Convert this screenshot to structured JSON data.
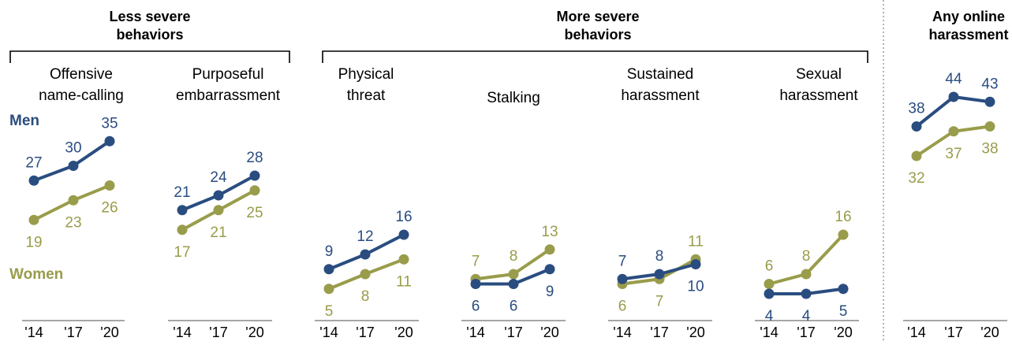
{
  "colors": {
    "men": "#2a4d80",
    "women": "#999c4a",
    "axis": "#a6a6a6",
    "divider": "#8c8c8c"
  },
  "labels": {
    "men": "Men",
    "women": "Women"
  },
  "groups": [
    {
      "title_lines": [
        "Less severe",
        "behaviors"
      ]
    },
    {
      "title_lines": [
        "More severe",
        "behaviors"
      ]
    },
    {
      "title_lines": [
        "Any online",
        "harassment"
      ]
    }
  ],
  "chart_data": {
    "type": "line",
    "x": [
      "'14",
      "'17",
      "'20"
    ],
    "panels": [
      {
        "title_lines": [
          "Offensive",
          "name-calling"
        ],
        "series": [
          {
            "name": "Men",
            "values": [
              27,
              30,
              35
            ]
          },
          {
            "name": "Women",
            "values": [
              19,
              23,
              26
            ]
          }
        ]
      },
      {
        "title_lines": [
          "Purposeful",
          "embarrassment"
        ],
        "series": [
          {
            "name": "Men",
            "values": [
              21,
              24,
              28
            ]
          },
          {
            "name": "Women",
            "values": [
              17,
              21,
              25
            ]
          }
        ]
      },
      {
        "title_lines": [
          "Physical",
          "threat"
        ],
        "series": [
          {
            "name": "Men",
            "values": [
              9,
              12,
              16
            ]
          },
          {
            "name": "Women",
            "values": [
              5,
              8,
              11
            ]
          }
        ]
      },
      {
        "title_lines": [
          "Stalking"
        ],
        "series": [
          {
            "name": "Men",
            "values": [
              6,
              6,
              9
            ]
          },
          {
            "name": "Women",
            "values": [
              7,
              8,
              13
            ]
          }
        ]
      },
      {
        "title_lines": [
          "Sustained",
          "harassment"
        ],
        "series": [
          {
            "name": "Men",
            "values": [
              7,
              8,
              10
            ]
          },
          {
            "name": "Women",
            "values": [
              6,
              7,
              11
            ]
          }
        ]
      },
      {
        "title_lines": [
          "Sexual",
          "harassment"
        ],
        "series": [
          {
            "name": "Men",
            "values": [
              4,
              4,
              5
            ]
          },
          {
            "name": "Women",
            "values": [
              6,
              8,
              16
            ]
          }
        ]
      },
      {
        "title_lines": [],
        "series": [
          {
            "name": "Men",
            "values": [
              38,
              44,
              43
            ]
          },
          {
            "name": "Women",
            "values": [
              32,
              37,
              38
            ]
          }
        ]
      }
    ]
  }
}
